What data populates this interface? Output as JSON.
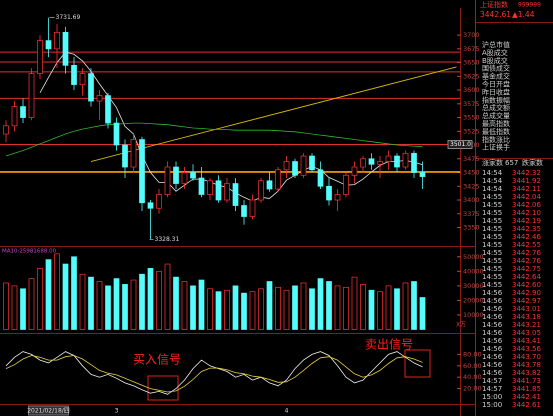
{
  "header": {
    "name": "上证指数",
    "code": "999999",
    "price": "3442.61",
    "change": "▲1.44"
  },
  "stats": {
    "labels": [
      "沪总市值",
      "A股成交",
      "B股成交",
      "国债成交",
      "基金成交",
      "今日开盘",
      "昨日收盘",
      "指数振幅",
      "总成交额",
      "总成交量",
      "最高指数",
      "最低指数",
      "指数涨比",
      "上证换手"
    ]
  },
  "tick_header": [
    "涨家数",
    "657",
    "跌家数"
  ],
  "tick_list": {
    "rows": [
      [
        "14:54",
        "3442.32"
      ],
      [
        "14:54",
        "3441.92"
      ],
      [
        "14:54",
        "3442.11"
      ],
      [
        "14:55",
        "3442.04"
      ],
      [
        "14:55",
        "3442.06"
      ],
      [
        "14:55",
        "3442.10"
      ],
      [
        "14:55",
        "3442.19"
      ],
      [
        "14:55",
        "3442.35"
      ],
      [
        "14:55",
        "3442.46"
      ],
      [
        "14:55",
        "3442.55"
      ],
      [
        "14:55",
        "3442.76"
      ],
      [
        "14:55",
        "3442.76"
      ],
      [
        "14:55",
        "3442.75"
      ],
      [
        "14:55",
        "3442.64"
      ],
      [
        "14:55",
        "3442.60"
      ],
      [
        "14:56",
        "3442.90"
      ],
      [
        "14:56",
        "3442.97"
      ],
      [
        "14:56",
        "3443.01"
      ],
      [
        "14:56",
        "3443.18"
      ],
      [
        "14:56",
        "3443.21"
      ],
      [
        "14:56",
        "3443.05"
      ],
      [
        "14:56",
        "3443.41"
      ],
      [
        "14:56",
        "3443.56"
      ],
      [
        "14:56",
        "3443.70"
      ],
      [
        "14:56",
        "3443.78"
      ],
      [
        "14:56",
        "3443.82"
      ],
      [
        "14:57",
        "3441.73"
      ],
      [
        "14:57",
        "3441.85"
      ],
      [
        "15:00",
        "3442.41"
      ],
      [
        "15:00",
        "3442.61"
      ]
    ]
  },
  "chart_data": [
    {
      "type": "candlestick",
      "categories": [
        null,
        null,
        null,
        null,
        null,
        "2021/02/18/四",
        null,
        null,
        null,
        null,
        null,
        null,
        null,
        "3",
        null,
        null,
        null,
        null,
        null,
        null,
        null,
        null,
        null,
        null,
        null,
        null,
        null,
        null,
        null,
        null,
        null,
        null,
        null,
        "4",
        null,
        null,
        null,
        null,
        null,
        null,
        null,
        null,
        null,
        null,
        null,
        null,
        null,
        null,
        null,
        null
      ],
      "open": [
        3520,
        3535,
        3570,
        3550,
        3630,
        3690,
        3675,
        3705,
        3645,
        3610,
        3630,
        3580,
        3590,
        3540,
        3500,
        3460,
        3510,
        3395,
        3385,
        3410,
        3460,
        3430,
        3450,
        3440,
        3410,
        3435,
        3400,
        3430,
        3390,
        3370,
        3400,
        3435,
        3420,
        3455,
        3470,
        3445,
        3480,
        3455,
        3425,
        3400,
        3410,
        3445,
        3460,
        3475,
        3465,
        3470,
        3480,
        3460,
        3485,
        3450
      ],
      "high": [
        3545,
        3580,
        3585,
        3640,
        3700,
        3731.69,
        3720,
        3715,
        3660,
        3640,
        3640,
        3600,
        3595,
        3550,
        3510,
        3520,
        3515,
        3400,
        3420,
        3470,
        3470,
        3460,
        3465,
        3460,
        3440,
        3445,
        3440,
        3440,
        3400,
        3410,
        3440,
        3450,
        3460,
        3480,
        3475,
        3485,
        3485,
        3470,
        3440,
        3420,
        3450,
        3470,
        3480,
        3485,
        3480,
        3490,
        3485,
        3490,
        3490,
        3470
      ],
      "low": [
        3505,
        3525,
        3540,
        3545,
        3620,
        3660,
        3640,
        3630,
        3600,
        3590,
        3570,
        3545,
        3530,
        3490,
        3440,
        3450,
        3380,
        3328.31,
        3375,
        3405,
        3420,
        3420,
        3435,
        3405,
        3400,
        3395,
        3395,
        3380,
        3355,
        3365,
        3395,
        3415,
        3415,
        3440,
        3440,
        3440,
        3450,
        3420,
        3390,
        3380,
        3405,
        3430,
        3450,
        3455,
        3440,
        3455,
        3450,
        3455,
        3440,
        3420
      ],
      "close": [
        3535,
        3570,
        3550,
        3630,
        3690,
        3675,
        3705,
        3645,
        3610,
        3630,
        3580,
        3590,
        3540,
        3500,
        3460,
        3510,
        3395,
        3385,
        3410,
        3460,
        3430,
        3450,
        3440,
        3410,
        3435,
        3400,
        3430,
        3390,
        3370,
        3400,
        3435,
        3420,
        3455,
        3470,
        3445,
        3480,
        3455,
        3425,
        3400,
        3410,
        3445,
        3460,
        3475,
        3465,
        3470,
        3480,
        3460,
        3485,
        3450,
        3442.61
      ],
      "up_color": "#ff3232",
      "down_color": "#54fcfc",
      "lines": [
        {
          "color": "#e8e8e8",
          "values": [
            null,
            null,
            null,
            null,
            3595,
            3623,
            3650,
            3669,
            3665,
            3653,
            3634,
            3611,
            3590,
            3568,
            3534,
            3520,
            3481,
            3450,
            3432,
            3432,
            3416,
            3427,
            3438,
            3438,
            3433,
            3427,
            3423,
            3413,
            3405,
            3398,
            3405,
            3403,
            3416,
            3436,
            3445,
            3454,
            3461,
            3455,
            3441,
            3434,
            3427,
            3428,
            3438,
            3451,
            3463,
            3470,
            3470,
            3472,
            3469,
            3464
          ]
        },
        {
          "color": "#2fb52f",
          "values": [
            3480,
            3485,
            3490,
            3496,
            3502,
            3508,
            3514,
            3520,
            3525,
            3529,
            3532,
            3535,
            3537,
            3538,
            3539,
            3540,
            3540,
            3539,
            3538,
            3537,
            3535,
            3533,
            3531,
            3530,
            3529,
            3528,
            3528,
            3527,
            3527,
            3527,
            3527,
            3527,
            3526,
            3525,
            3524,
            3522,
            3520,
            3518,
            3516,
            3514,
            3512,
            3510,
            3508,
            3506,
            3504,
            3502,
            3500,
            3499,
            3498,
            3497
          ]
        }
      ],
      "levels": [
        3669,
        3651,
        3633,
        3585,
        3501
      ],
      "level_color": "#e03030",
      "support": 3451,
      "support_color": "#ffa500",
      "level_label": {
        "value": 3501,
        "label": "3501.0"
      },
      "trendline": {
        "x": [
          10,
          53
        ],
        "y": [
          3470,
          3642
        ],
        "color": "#d4b800"
      },
      "ylim": [
        3320,
        3742
      ],
      "yticks": [
        3700,
        3675,
        3650,
        3625,
        3600,
        3575,
        3550,
        3525,
        3500,
        3475,
        3450,
        3425,
        3400,
        3375,
        3350
      ]
    },
    {
      "type": "bar",
      "legend_text": "MA10:25981688.00",
      "unit_label": "X万",
      "values": [
        32000,
        30000,
        28000,
        35000,
        42000,
        48000,
        52000,
        45000,
        50000,
        38000,
        36000,
        33000,
        30000,
        35000,
        31000,
        34000,
        38000,
        42000,
        40000,
        45000,
        36000,
        33000,
        30000,
        34000,
        28000,
        26000,
        27000,
        30000,
        25000,
        26000,
        28000,
        33000,
        29000,
        27000,
        30000,
        32000,
        28000,
        35000,
        33000,
        30000,
        29000,
        36000,
        31000,
        27000,
        26000,
        30000,
        28000,
        32000,
        33000,
        22000
      ],
      "ylim": [
        0,
        55000
      ],
      "yticks": [
        50000,
        40000,
        30000,
        20000,
        10000
      ]
    },
    {
      "type": "line",
      "series": [
        {
          "color": "#f0f0f0",
          "values": [
            60,
            75,
            85,
            80,
            70,
            65,
            75,
            85,
            78,
            60,
            45,
            40,
            45,
            38,
            30,
            25,
            18,
            12,
            15,
            10,
            20,
            35,
            55,
            70,
            60,
            55,
            50,
            40,
            45,
            35,
            40,
            30,
            25,
            35,
            55,
            70,
            80,
            85,
            78,
            60,
            40,
            30,
            35,
            50,
            65,
            80,
            85,
            75,
            65,
            58
          ]
        },
        {
          "color": "#e8d040",
          "values": [
            55,
            62,
            72,
            78,
            75,
            70,
            70,
            76,
            78,
            72,
            62,
            52,
            47,
            44,
            38,
            32,
            26,
            20,
            17,
            14,
            16,
            24,
            36,
            50,
            56,
            56,
            53,
            48,
            46,
            42,
            40,
            36,
            31,
            32,
            40,
            52,
            64,
            74,
            76,
            70,
            58,
            46,
            40,
            44,
            52,
            64,
            74,
            76,
            72,
            66
          ]
        }
      ],
      "annotations": [
        "买入信号",
        "卖出信号"
      ],
      "ylim": [
        0,
        100
      ],
      "yticks": [
        {
          "value": 80,
          "label": "80.00"
        },
        {
          "value": 60,
          "label": "60.00"
        },
        {
          "value": 40,
          "label": "40.00"
        },
        {
          "value": 20,
          "label": "20.00"
        }
      ]
    }
  ]
}
